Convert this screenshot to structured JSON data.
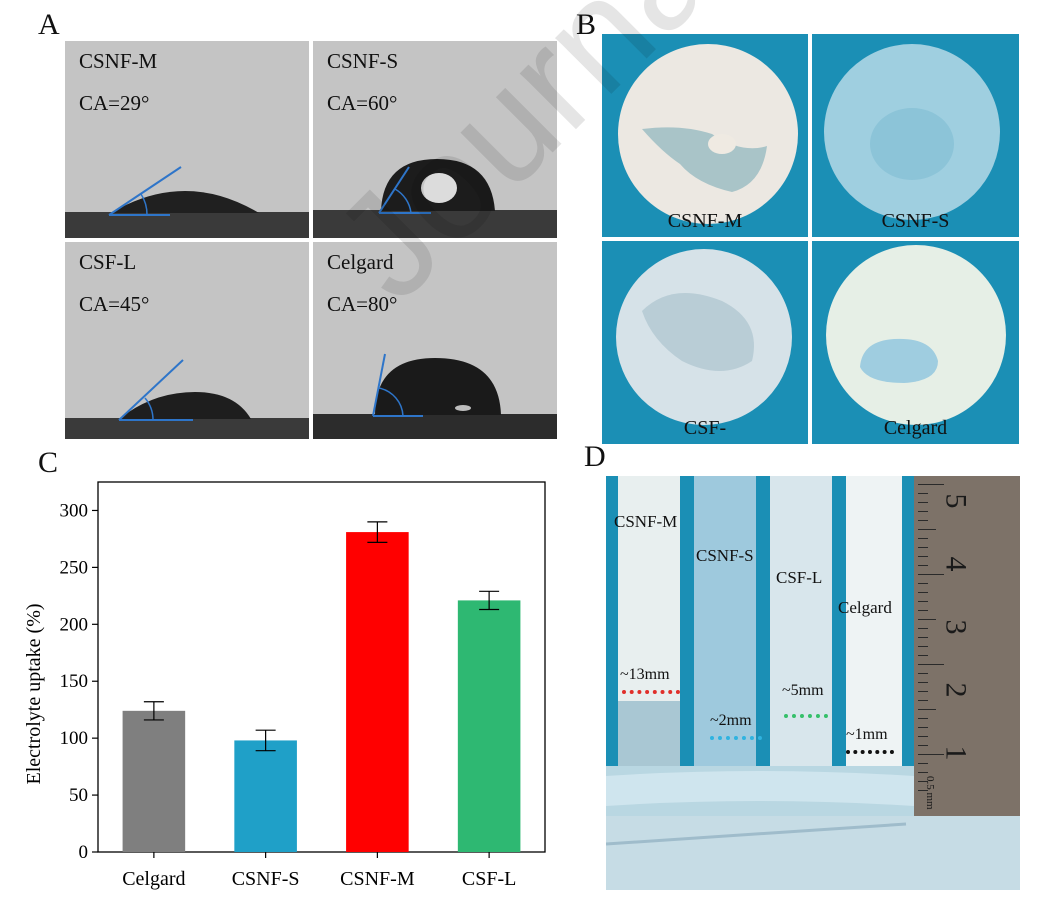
{
  "panels": {
    "a": {
      "letter": "A",
      "cells": [
        {
          "name": "CSNF-M",
          "ca": "CA=29°"
        },
        {
          "name": "CSNF-S",
          "ca": "CA=60°"
        },
        {
          "name": "CSF-L",
          "ca": "CA=45°"
        },
        {
          "name": "Celgard",
          "ca": "CA=80°"
        }
      ]
    },
    "b": {
      "letter": "B",
      "cells": [
        {
          "name": "CSNF-M"
        },
        {
          "name": "CSNF-S"
        },
        {
          "name": "CSF-"
        },
        {
          "name": "Celgard"
        }
      ]
    },
    "c": {
      "letter": "C"
    },
    "d": {
      "letter": "D",
      "strips": [
        {
          "name": "CSNF-M",
          "height_label": "~13mm",
          "line_color": "#e0302b"
        },
        {
          "name": "CSNF-S",
          "height_label": "~2mm",
          "line_color": "#2fb3e0"
        },
        {
          "name": "CSF-L",
          "height_label": "~5mm",
          "line_color": "#35c06a"
        },
        {
          "name": "Celgard",
          "height_label": "~1mm",
          "line_color": "#111111"
        }
      ],
      "ruler_numbers": [
        "5",
        "4",
        "3",
        "2",
        "1"
      ],
      "ruler_unit_text": "0.5 mm"
    }
  },
  "watermark": "Journal Pre-proof",
  "chart_data": {
    "type": "bar",
    "categories": [
      "Celgard",
      "CSNF-S",
      "CSNF-M",
      "CSF-L"
    ],
    "values": [
      124,
      98,
      281,
      221
    ],
    "errors": [
      8,
      9,
      9,
      8
    ],
    "colors": [
      "#7f7f7f",
      "#1fa0c8",
      "#ff0000",
      "#2eb872"
    ],
    "ylabel": "Electrolyte uptake (%)",
    "xlabel": "",
    "ylim": [
      0,
      325
    ],
    "yticks": [
      0,
      50,
      100,
      150,
      200,
      250,
      300
    ],
    "grid": false
  }
}
